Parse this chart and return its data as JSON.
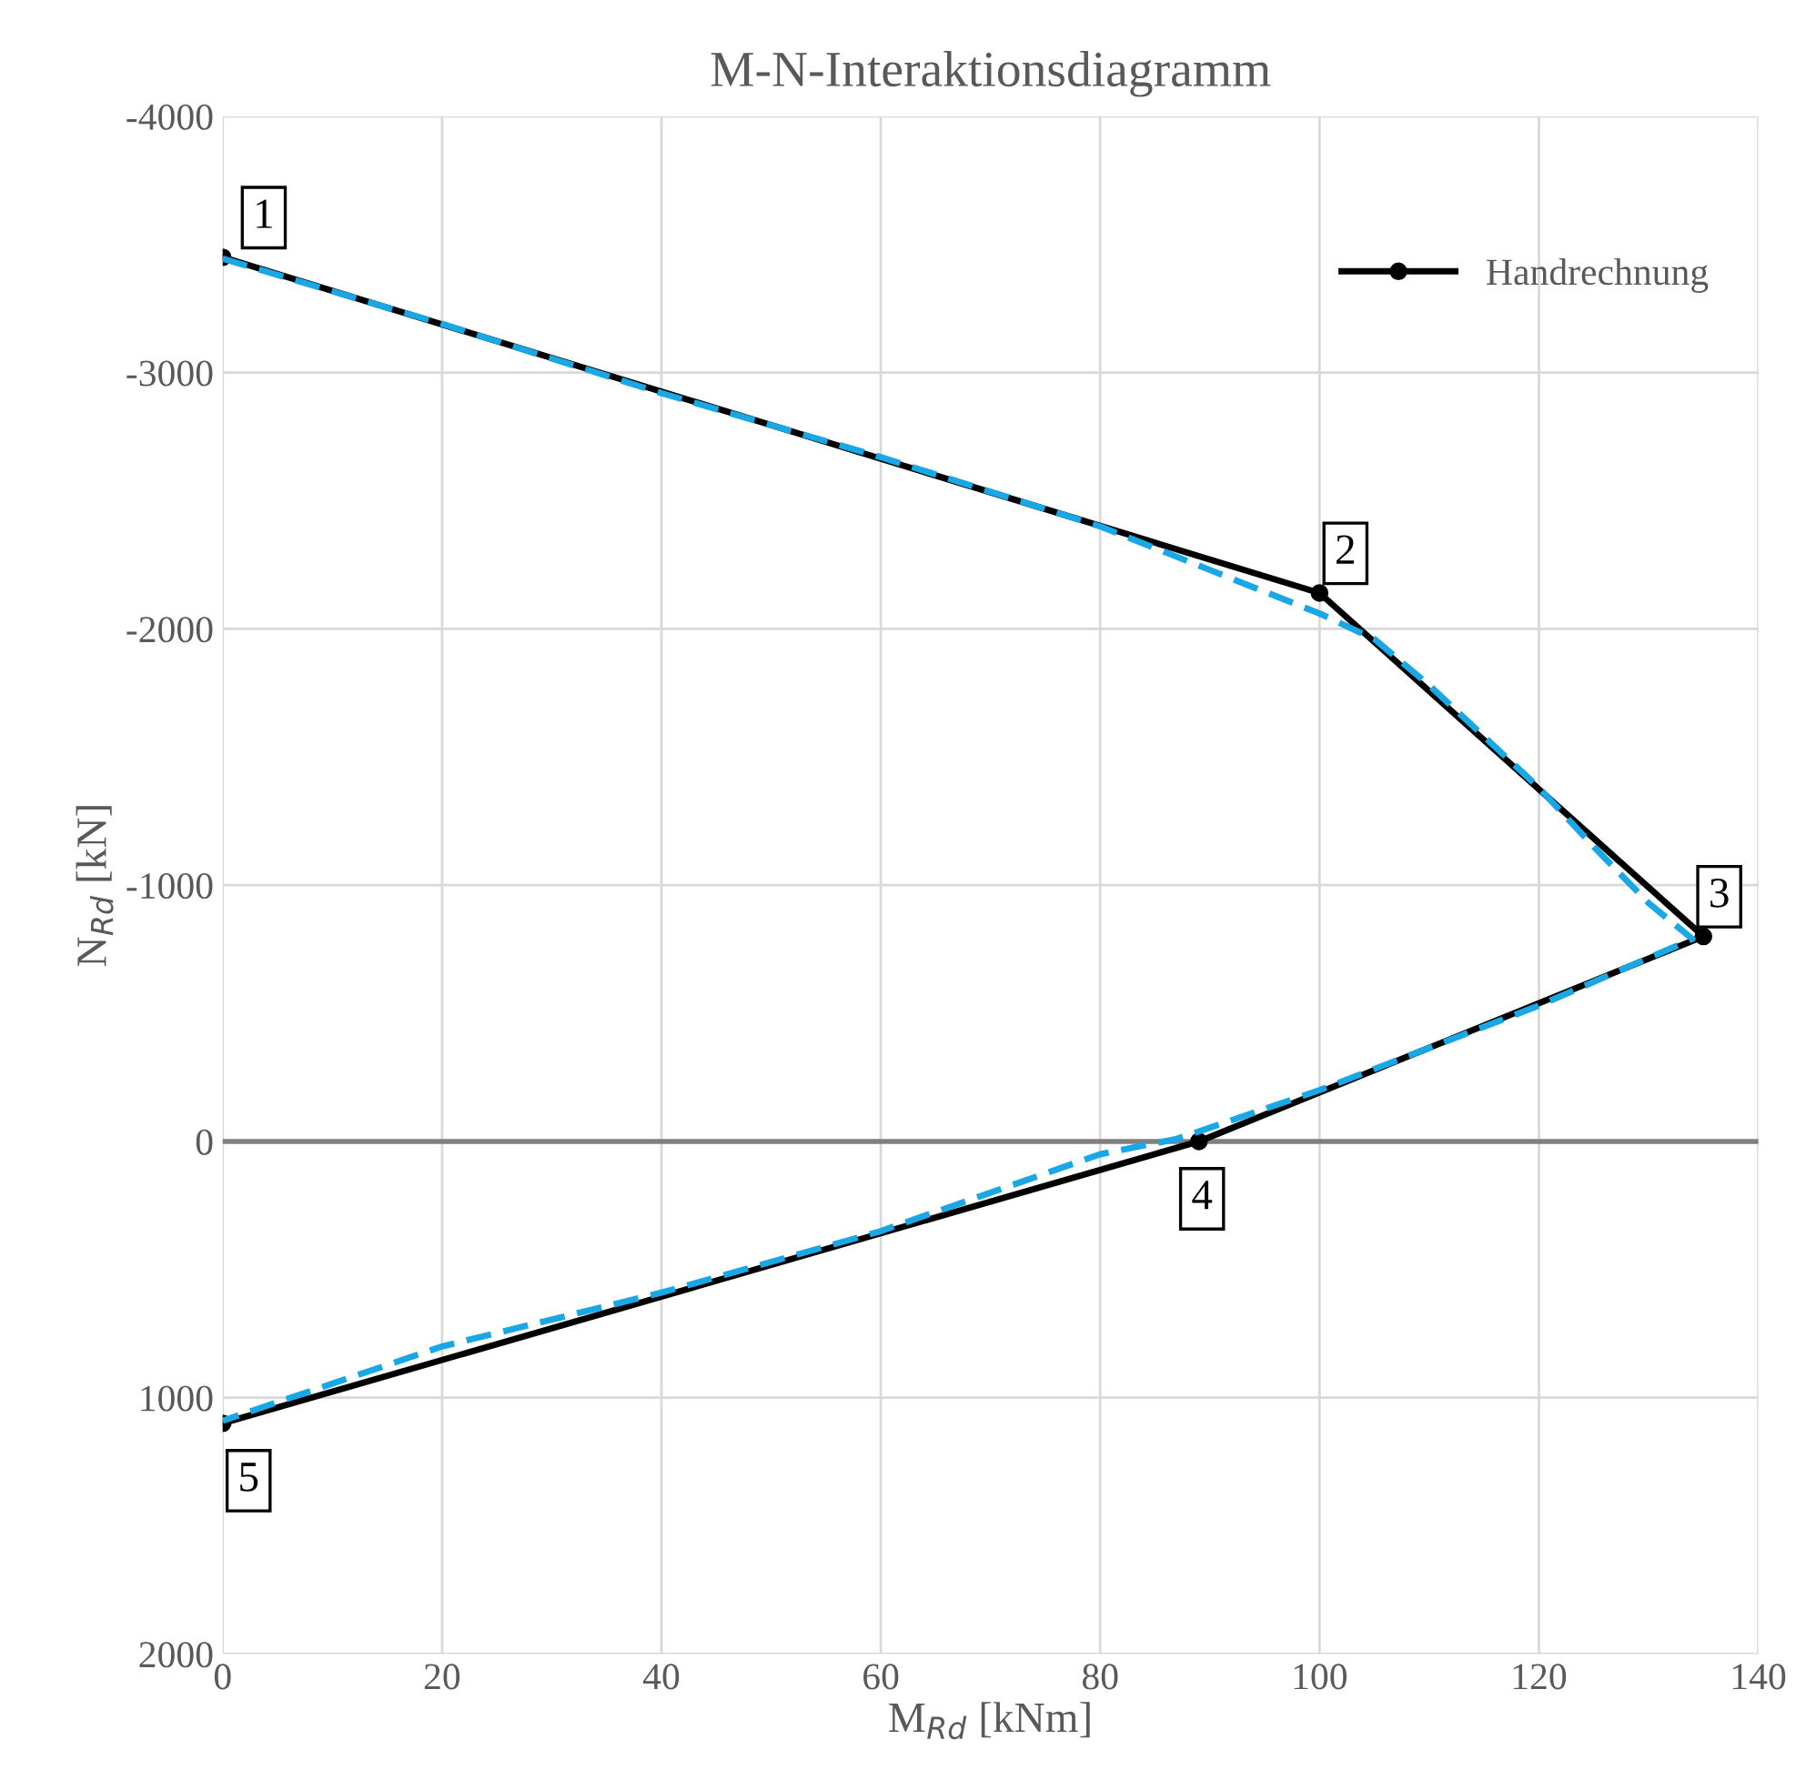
{
  "chart_data": {
    "type": "line",
    "title": "M-N-Interaktionsdiagramm",
    "xlabel": "M$_{Rd}$ [kNm]",
    "ylabel": "N$_{Rd}$ [kN]",
    "xlim": [
      0,
      140
    ],
    "xticks": [
      0,
      20,
      40,
      60,
      80,
      100,
      120,
      140
    ],
    "ylim": [
      2000,
      -4000
    ],
    "yticks": [
      -4000,
      -3000,
      -2000,
      -1000,
      0,
      1000,
      2000
    ],
    "grid": true,
    "legend": "top right",
    "ref_lines": [
      {
        "axis": "y",
        "value": 0,
        "color": "#808080"
      }
    ],
    "series": [
      {
        "name": "Handrechnung",
        "color": "#000000",
        "marker": "circle",
        "line_style": "solid",
        "x": [
          0,
          100,
          135,
          89,
          0
        ],
        "values": [
          -3450,
          -2140,
          -800,
          0,
          1100
        ]
      },
      {
        "color": "#1aa7e6",
        "marker": "none",
        "line_style": "dashed",
        "x": [
          0,
          20,
          40,
          60,
          80,
          90,
          100,
          105,
          110,
          115,
          120,
          125,
          130,
          134,
          120,
          100,
          87,
          80,
          60,
          40,
          20,
          0
        ],
        "values": [
          -3445,
          -3190,
          -2920,
          -2670,
          -2400,
          -2230,
          -2060,
          -1960,
          -1780,
          -1580,
          -1380,
          -1150,
          -930,
          -790,
          -530,
          -200,
          -10,
          50,
          350,
          590,
          800,
          1090
        ]
      }
    ],
    "annotations": [
      {
        "text": "1",
        "x": 0,
        "y": -3450
      },
      {
        "text": "2",
        "x": 100,
        "y": -2140
      },
      {
        "text": "3",
        "x": 135,
        "y": -800
      },
      {
        "text": "4",
        "x": 89,
        "y": 0
      },
      {
        "text": "5",
        "x": 0,
        "y": 1100
      }
    ]
  }
}
